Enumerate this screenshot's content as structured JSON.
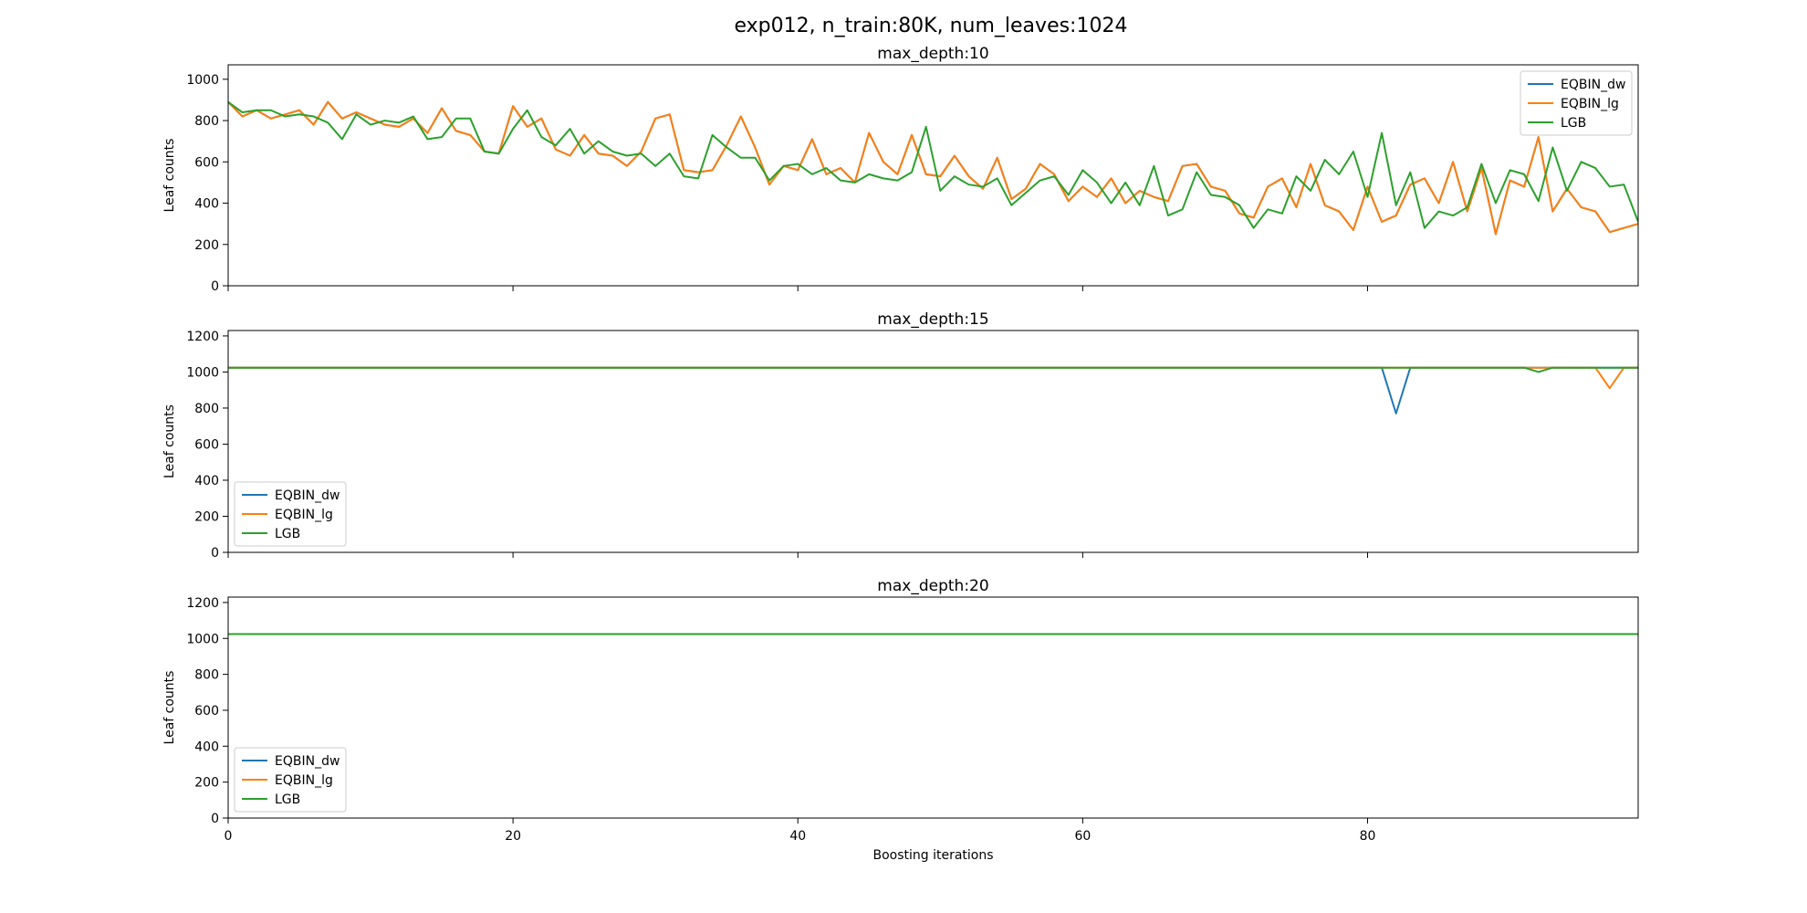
{
  "figure_title": "exp012, n_train:80K, num_leaves:1024",
  "colors": {
    "EQBIN_dw": "#1f77b4",
    "EQBIN_lg": "#ff7f0e",
    "LGB": "#2ca02c"
  },
  "chart_data": [
    {
      "type": "line",
      "title": "max_depth:10",
      "xlabel": "",
      "ylabel": "Leaf counts",
      "xlim": [
        0,
        99
      ],
      "ylim": [
        0,
        1070
      ],
      "x_ticks": [
        0,
        20,
        40,
        60,
        80
      ],
      "y_ticks": [
        0,
        200,
        400,
        600,
        800,
        1000
      ],
      "show_x_tick_labels": false,
      "grid": false,
      "legend_position": "top-right",
      "series": [
        {
          "name": "EQBIN_dw",
          "values": [
            890,
            820,
            850,
            810,
            830,
            850,
            780,
            890,
            810,
            840,
            810,
            780,
            770,
            810,
            740,
            860,
            750,
            730,
            650,
            640,
            870,
            770,
            810,
            660,
            630,
            730,
            640,
            630,
            580,
            650,
            810,
            830,
            560,
            550,
            560,
            680,
            820,
            670,
            490,
            580,
            560,
            710,
            540,
            570,
            500,
            740,
            600,
            540,
            730,
            540,
            530,
            630,
            530,
            470,
            620,
            420,
            470,
            590,
            540,
            410,
            480,
            430,
            520,
            400,
            460,
            430,
            410,
            580,
            590,
            480,
            460,
            350,
            330,
            480,
            520,
            380,
            590,
            390,
            360,
            270,
            480,
            310,
            340,
            490,
            520,
            400,
            600,
            360,
            570,
            250,
            510,
            480,
            720,
            360,
            470,
            380,
            360,
            260,
            280,
            300
          ]
        },
        {
          "name": "EQBIN_lg",
          "values": [
            890,
            820,
            850,
            810,
            830,
            850,
            780,
            890,
            810,
            840,
            810,
            780,
            770,
            810,
            740,
            860,
            750,
            730,
            650,
            640,
            870,
            770,
            810,
            660,
            630,
            730,
            640,
            630,
            580,
            650,
            810,
            830,
            560,
            550,
            560,
            680,
            820,
            670,
            490,
            580,
            560,
            710,
            540,
            570,
            500,
            740,
            600,
            540,
            730,
            540,
            530,
            630,
            530,
            470,
            620,
            420,
            470,
            590,
            540,
            410,
            480,
            430,
            520,
            400,
            460,
            430,
            410,
            580,
            590,
            480,
            460,
            350,
            330,
            480,
            520,
            380,
            590,
            390,
            360,
            270,
            480,
            310,
            340,
            490,
            520,
            400,
            600,
            360,
            570,
            250,
            510,
            480,
            720,
            360,
            470,
            380,
            360,
            260,
            280,
            300
          ]
        },
        {
          "name": "LGB",
          "values": [
            890,
            840,
            850,
            850,
            820,
            830,
            820,
            790,
            710,
            830,
            780,
            800,
            790,
            820,
            710,
            720,
            810,
            810,
            650,
            640,
            760,
            850,
            720,
            680,
            760,
            640,
            700,
            650,
            630,
            640,
            580,
            640,
            530,
            520,
            730,
            670,
            620,
            620,
            510,
            580,
            590,
            540,
            570,
            510,
            500,
            540,
            520,
            510,
            550,
            770,
            460,
            530,
            490,
            480,
            520,
            390,
            450,
            510,
            530,
            440,
            560,
            500,
            400,
            500,
            390,
            580,
            340,
            370,
            550,
            440,
            430,
            390,
            280,
            370,
            350,
            530,
            460,
            610,
            540,
            650,
            430,
            740,
            390,
            550,
            280,
            360,
            340,
            380,
            590,
            400,
            560,
            540,
            410,
            670,
            460,
            600,
            570,
            480,
            490,
            310
          ]
        }
      ]
    },
    {
      "type": "line",
      "title": "max_depth:15",
      "xlabel": "",
      "ylabel": "Leaf counts",
      "xlim": [
        0,
        99
      ],
      "ylim": [
        0,
        1230
      ],
      "x_ticks": [
        0,
        20,
        40,
        60,
        80
      ],
      "y_ticks": [
        0,
        200,
        400,
        600,
        800,
        1000,
        1200
      ],
      "show_x_tick_labels": false,
      "grid": false,
      "legend_position": "bottom-left",
      "series": [
        {
          "name": "EQBIN_dw",
          "values": [
            1024,
            1024,
            1024,
            1024,
            1024,
            1024,
            1024,
            1024,
            1024,
            1024,
            1024,
            1024,
            1024,
            1024,
            1024,
            1024,
            1024,
            1024,
            1024,
            1024,
            1024,
            1024,
            1024,
            1024,
            1024,
            1024,
            1024,
            1024,
            1024,
            1024,
            1024,
            1024,
            1024,
            1024,
            1024,
            1024,
            1024,
            1024,
            1024,
            1024,
            1024,
            1024,
            1024,
            1024,
            1024,
            1024,
            1024,
            1024,
            1024,
            1024,
            1024,
            1024,
            1024,
            1024,
            1024,
            1024,
            1024,
            1024,
            1024,
            1024,
            1024,
            1024,
            1024,
            1024,
            1024,
            1024,
            1024,
            1024,
            1024,
            1024,
            1024,
            1024,
            1024,
            1024,
            1024,
            1024,
            1024,
            1024,
            1024,
            1024,
            1024,
            1024,
            770,
            1024,
            1024,
            1024,
            1024,
            1024,
            1024,
            1024,
            1024,
            1024,
            1024,
            1024,
            1024,
            1024,
            1024,
            1024,
            1024,
            1024
          ]
        },
        {
          "name": "EQBIN_lg",
          "values": [
            1024,
            1024,
            1024,
            1024,
            1024,
            1024,
            1024,
            1024,
            1024,
            1024,
            1024,
            1024,
            1024,
            1024,
            1024,
            1024,
            1024,
            1024,
            1024,
            1024,
            1024,
            1024,
            1024,
            1024,
            1024,
            1024,
            1024,
            1024,
            1024,
            1024,
            1024,
            1024,
            1024,
            1024,
            1024,
            1024,
            1024,
            1024,
            1024,
            1024,
            1024,
            1024,
            1024,
            1024,
            1024,
            1024,
            1024,
            1024,
            1024,
            1024,
            1024,
            1024,
            1024,
            1024,
            1024,
            1024,
            1024,
            1024,
            1024,
            1024,
            1024,
            1024,
            1024,
            1024,
            1024,
            1024,
            1024,
            1024,
            1024,
            1024,
            1024,
            1024,
            1024,
            1024,
            1024,
            1024,
            1024,
            1024,
            1024,
            1024,
            1024,
            1024,
            1024,
            1024,
            1024,
            1024,
            1024,
            1024,
            1024,
            1024,
            1024,
            1024,
            1024,
            1024,
            1024,
            1024,
            1024,
            910,
            1024,
            1024
          ]
        },
        {
          "name": "LGB",
          "values": [
            1024,
            1024,
            1024,
            1024,
            1024,
            1024,
            1024,
            1024,
            1024,
            1024,
            1024,
            1024,
            1024,
            1024,
            1024,
            1024,
            1024,
            1024,
            1024,
            1024,
            1024,
            1024,
            1024,
            1024,
            1024,
            1024,
            1024,
            1024,
            1024,
            1024,
            1024,
            1024,
            1024,
            1024,
            1024,
            1024,
            1024,
            1024,
            1024,
            1024,
            1024,
            1024,
            1024,
            1024,
            1024,
            1024,
            1024,
            1024,
            1024,
            1024,
            1024,
            1024,
            1024,
            1024,
            1024,
            1024,
            1024,
            1024,
            1024,
            1024,
            1024,
            1024,
            1024,
            1024,
            1024,
            1024,
            1024,
            1024,
            1024,
            1024,
            1024,
            1024,
            1024,
            1024,
            1024,
            1024,
            1024,
            1024,
            1024,
            1024,
            1024,
            1024,
            1024,
            1024,
            1024,
            1024,
            1024,
            1024,
            1024,
            1024,
            1024,
            1024,
            1000,
            1024,
            1024,
            1024,
            1024,
            1024,
            1024,
            1024
          ]
        }
      ]
    },
    {
      "type": "line",
      "title": "max_depth:20",
      "xlabel": "Boosting iterations",
      "ylabel": "Leaf counts",
      "xlim": [
        0,
        99
      ],
      "ylim": [
        0,
        1230
      ],
      "x_ticks": [
        0,
        20,
        40,
        60,
        80
      ],
      "y_ticks": [
        0,
        200,
        400,
        600,
        800,
        1000,
        1200
      ],
      "show_x_tick_labels": true,
      "grid": false,
      "legend_position": "bottom-left",
      "series": [
        {
          "name": "EQBIN_dw",
          "values": [
            1024,
            1024,
            1024,
            1024,
            1024,
            1024,
            1024,
            1024,
            1024,
            1024,
            1024,
            1024,
            1024,
            1024,
            1024,
            1024,
            1024,
            1024,
            1024,
            1024,
            1024,
            1024,
            1024,
            1024,
            1024,
            1024,
            1024,
            1024,
            1024,
            1024,
            1024,
            1024,
            1024,
            1024,
            1024,
            1024,
            1024,
            1024,
            1024,
            1024,
            1024,
            1024,
            1024,
            1024,
            1024,
            1024,
            1024,
            1024,
            1024,
            1024,
            1024,
            1024,
            1024,
            1024,
            1024,
            1024,
            1024,
            1024,
            1024,
            1024,
            1024,
            1024,
            1024,
            1024,
            1024,
            1024,
            1024,
            1024,
            1024,
            1024,
            1024,
            1024,
            1024,
            1024,
            1024,
            1024,
            1024,
            1024,
            1024,
            1024,
            1024,
            1024,
            1024,
            1024,
            1024,
            1024,
            1024,
            1024,
            1024,
            1024,
            1024,
            1024,
            1024,
            1024,
            1024,
            1024,
            1024,
            1024,
            1024,
            1024
          ]
        },
        {
          "name": "EQBIN_lg",
          "values": [
            1024,
            1024,
            1024,
            1024,
            1024,
            1024,
            1024,
            1024,
            1024,
            1024,
            1024,
            1024,
            1024,
            1024,
            1024,
            1024,
            1024,
            1024,
            1024,
            1024,
            1024,
            1024,
            1024,
            1024,
            1024,
            1024,
            1024,
            1024,
            1024,
            1024,
            1024,
            1024,
            1024,
            1024,
            1024,
            1024,
            1024,
            1024,
            1024,
            1024,
            1024,
            1024,
            1024,
            1024,
            1024,
            1024,
            1024,
            1024,
            1024,
            1024,
            1024,
            1024,
            1024,
            1024,
            1024,
            1024,
            1024,
            1024,
            1024,
            1024,
            1024,
            1024,
            1024,
            1024,
            1024,
            1024,
            1024,
            1024,
            1024,
            1024,
            1024,
            1024,
            1024,
            1024,
            1024,
            1024,
            1024,
            1024,
            1024,
            1024,
            1024,
            1024,
            1024,
            1024,
            1024,
            1024,
            1024,
            1024,
            1024,
            1024,
            1024,
            1024,
            1024,
            1024,
            1024,
            1024,
            1024,
            1024,
            1024,
            1024
          ]
        },
        {
          "name": "LGB",
          "values": [
            1024,
            1024,
            1024,
            1024,
            1024,
            1024,
            1024,
            1024,
            1024,
            1024,
            1024,
            1024,
            1024,
            1024,
            1024,
            1024,
            1024,
            1024,
            1024,
            1024,
            1024,
            1024,
            1024,
            1024,
            1024,
            1024,
            1024,
            1024,
            1024,
            1024,
            1024,
            1024,
            1024,
            1024,
            1024,
            1024,
            1024,
            1024,
            1024,
            1024,
            1024,
            1024,
            1024,
            1024,
            1024,
            1024,
            1024,
            1024,
            1024,
            1024,
            1024,
            1024,
            1024,
            1024,
            1024,
            1024,
            1024,
            1024,
            1024,
            1024,
            1024,
            1024,
            1024,
            1024,
            1024,
            1024,
            1024,
            1024,
            1024,
            1024,
            1024,
            1024,
            1024,
            1024,
            1024,
            1024,
            1024,
            1024,
            1024,
            1024,
            1024,
            1024,
            1024,
            1024,
            1024,
            1024,
            1024,
            1024,
            1024,
            1024,
            1024,
            1024,
            1024,
            1024,
            1024,
            1024,
            1024,
            1024,
            1024,
            1024
          ]
        }
      ]
    }
  ]
}
